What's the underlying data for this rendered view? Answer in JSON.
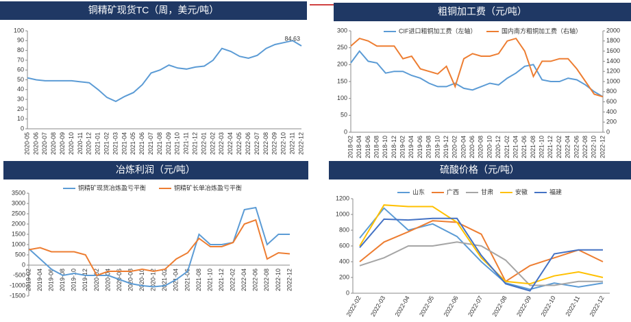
{
  "chart_data": [
    {
      "type": "line",
      "title": "铜精矿现货TC（周，美元/吨）",
      "categories": [
        "2020-05",
        "2020-06",
        "2020-07",
        "2020-08",
        "2020-09",
        "2020-10",
        "2020-11",
        "2020-12",
        "2021-01",
        "2021-02",
        "2021-03",
        "2021-04",
        "2021-05",
        "2021-06",
        "2021-07",
        "2021-08",
        "2021-09",
        "2021-10",
        "2021-11",
        "2021-12",
        "2022-01",
        "2022-02",
        "2022-03",
        "2022-04",
        "2022-05",
        "2022-06",
        "2022-07",
        "2022-08",
        "2022-09",
        "2022-10",
        "2022-11",
        "2022-12"
      ],
      "series": [
        {
          "color": "#5b9bd5",
          "values": [
            52,
            50,
            49,
            49,
            49,
            49,
            48,
            47,
            40,
            32,
            28,
            33,
            37,
            45,
            57,
            60,
            65,
            62,
            61,
            63,
            64,
            70,
            82,
            79,
            74,
            72,
            75,
            82,
            86,
            88,
            90,
            84.63
          ]
        }
      ],
      "ylim": [
        0,
        100
      ],
      "yticks": [
        0,
        10,
        20,
        30,
        40,
        50,
        60,
        70,
        80,
        90,
        100
      ]
    },
    {
      "type": "line",
      "title": "粗铜加工费（元/吨）",
      "categories": [
        "2018-02",
        "2018-04",
        "2018-06",
        "2018-08",
        "2018-10",
        "2018-12",
        "2019-02",
        "2019-04",
        "2019-06",
        "2019-08",
        "2019-10",
        "2019-12",
        "2020-02",
        "2020-04",
        "2020-06",
        "2020-08",
        "2020-10",
        "2020-12",
        "2021-02",
        "2021-04",
        "2021-06",
        "2021-08",
        "2021-10",
        "2021-12",
        "2022-02",
        "2022-04",
        "2022-06",
        "2022-08",
        "2022-10",
        "2022-12"
      ],
      "series": [
        {
          "name": "CIF进口粗铜加工费（左轴）",
          "color": "#5b9bd5",
          "values": [
            205,
            240,
            210,
            205,
            175,
            180,
            180,
            168,
            160,
            145,
            135,
            135,
            145,
            130,
            125,
            135,
            145,
            140,
            160,
            175,
            195,
            200,
            155,
            150,
            150,
            160,
            155,
            140,
            120,
            105
          ]
        },
        {
          "name": "国内南方粗铜加工费（右轴）",
          "color": "#ed7d31",
          "axis": "y2",
          "values": [
            1700,
            1850,
            1800,
            1700,
            1700,
            1700,
            1450,
            1500,
            1250,
            1200,
            1150,
            1300,
            900,
            1450,
            1550,
            1500,
            1500,
            1550,
            1800,
            1850,
            1600,
            1100,
            1400,
            1400,
            1450,
            1450,
            1250,
            1000,
            750,
            700
          ]
        }
      ],
      "ylim": [
        0,
        300
      ],
      "yticks": [
        0,
        50,
        100,
        150,
        200,
        250,
        300
      ],
      "y2lim": [
        0,
        2000
      ],
      "y2ticks": [
        0,
        200,
        400,
        600,
        800,
        1000,
        1200,
        1400,
        1600,
        1800,
        2000
      ]
    },
    {
      "type": "line",
      "title": "冶炼利润（元/吨）",
      "categories": [
        "2019-02",
        "2019-04",
        "2019-06",
        "2019-08",
        "2019-10",
        "2019-12",
        "2020-02",
        "2020-04",
        "2020-06",
        "2020-08",
        "2020-10",
        "2020-12",
        "2021-02",
        "2021-04",
        "2021-06",
        "2021-08",
        "2021-10",
        "2021-12",
        "2022-02",
        "2022-04",
        "2022-06",
        "2022-08",
        "2022-10",
        "2022-12"
      ],
      "series": [
        {
          "name": "铜精矿现货冶炼盈亏平衡",
          "color": "#5b9bd5",
          "values": [
            800,
            300,
            -200,
            -500,
            -400,
            -500,
            -500,
            -500,
            -700,
            -900,
            -1000,
            -1050,
            -1000,
            -700,
            -300,
            1500,
            1000,
            1000,
            1100,
            2700,
            2800,
            1000,
            1500,
            1500
          ]
        },
        {
          "name": "铜精矿长单冶炼盈亏平衡",
          "color": "#ed7d31",
          "values": [
            750,
            850,
            650,
            650,
            650,
            500,
            -500,
            -300,
            -300,
            -300,
            -200,
            -300,
            -200,
            300,
            600,
            1300,
            900,
            900,
            1100,
            2000,
            2200,
            300,
            600,
            550
          ]
        }
      ],
      "ylim": [
        -1500,
        3500
      ],
      "yticks": [
        -1500,
        -1000,
        -500,
        0,
        500,
        1000,
        1500,
        2000,
        2500,
        3000,
        3500
      ]
    },
    {
      "type": "line",
      "title": "硫酸价格（元/吨）",
      "categories": [
        "2022-02",
        "2022-03",
        "2022-04",
        "2022-05",
        "2022-06",
        "2022-07",
        "2022-08",
        "2022-09",
        "2022-10",
        "2022-11",
        "2022-12"
      ],
      "series": [
        {
          "name": "山东",
          "color": "#5b9bd5",
          "values": [
            700,
            1080,
            800,
            880,
            720,
            400,
            130,
            50,
            130,
            80,
            130
          ]
        },
        {
          "name": "广西",
          "color": "#ed7d31",
          "values": [
            400,
            650,
            780,
            920,
            900,
            750,
            150,
            350,
            450,
            550,
            400
          ]
        },
        {
          "name": "甘肃",
          "color": "#a5a5a5",
          "values": [
            350,
            450,
            600,
            600,
            650,
            600,
            420,
            100,
            100,
            150,
            150
          ]
        },
        {
          "name": "安徽",
          "color": "#ffc000",
          "values": [
            600,
            1120,
            1100,
            1100,
            900,
            450,
            150,
            120,
            220,
            270,
            200
          ]
        },
        {
          "name": "福建",
          "color": "#4472c4",
          "values": [
            580,
            940,
            930,
            950,
            950,
            480,
            120,
            30,
            500,
            550,
            550
          ]
        }
      ],
      "ylim": [
        0,
        1200
      ],
      "yticks": [
        0,
        200,
        400,
        600,
        800,
        1000,
        1200
      ]
    }
  ]
}
